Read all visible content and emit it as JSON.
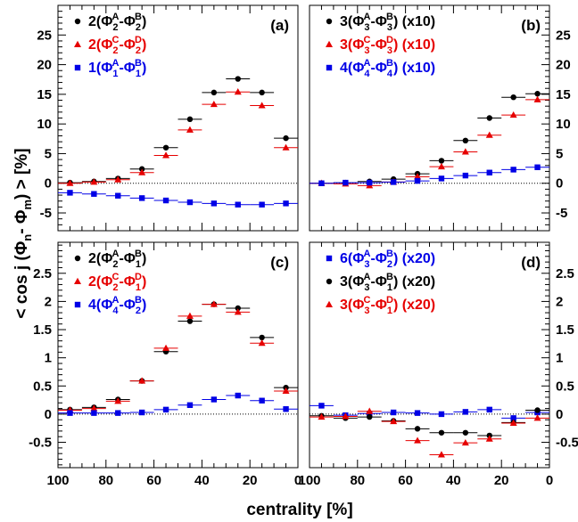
{
  "figure": {
    "xlabel": "centrality [%]",
    "ylabel_parts": [
      "< cos j (Φ",
      "n",
      "- Φ",
      "m",
      ") > [%]"
    ]
  },
  "colors": {
    "black": "#000000",
    "red": "#e60000",
    "blue": "#0000e6",
    "frame": "#000000",
    "dotted": "#000000"
  },
  "chart_data": [
    {
      "type": "scatter",
      "panel_label": "(a)",
      "xlim": [
        100,
        0
      ],
      "ylim": [
        -8,
        30
      ],
      "x_ticks": [
        100,
        80,
        60,
        40,
        20,
        0
      ],
      "y_ticks": [
        -5,
        0,
        5,
        10,
        15,
        20,
        25
      ],
      "y_axis_side": "left",
      "zero_line": true,
      "legend": "top-left",
      "series": [
        {
          "color": "black",
          "marker": "circle",
          "label": {
            "coef": "2",
            "s1": "2",
            "p1": "A",
            "s2": "2",
            "p2": "B",
            "suffix": ""
          },
          "x": [
            95,
            85,
            75,
            65,
            55,
            45,
            35,
            25,
            15,
            5
          ],
          "y": [
            0.1,
            0.3,
            0.8,
            2.4,
            6.0,
            10.8,
            15.3,
            17.6,
            15.3,
            7.6
          ]
        },
        {
          "color": "red",
          "marker": "triangle",
          "label": {
            "coef": "2",
            "s1": "2",
            "p1": "C",
            "s2": "2",
            "p2": "D",
            "suffix": ""
          },
          "x": [
            95,
            85,
            75,
            65,
            55,
            45,
            35,
            25,
            15,
            5
          ],
          "y": [
            0.0,
            0.2,
            0.6,
            1.8,
            4.7,
            9.0,
            13.3,
            15.4,
            13.1,
            6.0
          ]
        },
        {
          "color": "blue",
          "marker": "square",
          "label": {
            "coef": "1",
            "s1": "1",
            "p1": "A",
            "s2": "1",
            "p2": "B",
            "suffix": ""
          },
          "x": [
            95,
            85,
            75,
            65,
            55,
            45,
            35,
            25,
            15,
            5
          ],
          "y": [
            -1.6,
            -1.8,
            -2.1,
            -2.5,
            -2.9,
            -3.2,
            -3.4,
            -3.6,
            -3.6,
            -3.4
          ]
        }
      ]
    },
    {
      "type": "scatter",
      "panel_label": "(b)",
      "xlim": [
        100,
        0
      ],
      "ylim": [
        -8,
        30
      ],
      "x_ticks": [
        100,
        80,
        60,
        40,
        20,
        0
      ],
      "y_ticks": [
        -5,
        0,
        5,
        10,
        15,
        20,
        25
      ],
      "y_axis_side": "right",
      "zero_line": true,
      "legend": "top-left",
      "series": [
        {
          "color": "black",
          "marker": "circle",
          "label": {
            "coef": "3",
            "s1": "3",
            "p1": "A",
            "s2": "3",
            "p2": "B",
            "suffix": " (x10)"
          },
          "x": [
            95,
            85,
            75,
            65,
            55,
            45,
            35,
            25,
            15,
            5
          ],
          "y": [
            0.0,
            0.1,
            0.3,
            0.7,
            1.6,
            3.8,
            7.2,
            11.0,
            14.5,
            15.1
          ]
        },
        {
          "color": "red",
          "marker": "triangle",
          "label": {
            "coef": "3",
            "s1": "3",
            "p1": "C",
            "s2": "3",
            "p2": "D",
            "suffix": " (x10)"
          },
          "x": [
            95,
            85,
            75,
            65,
            55,
            45,
            35,
            25,
            15,
            5
          ],
          "y": [
            0.0,
            -0.1,
            -0.4,
            0.2,
            1.1,
            2.8,
            5.3,
            8.1,
            11.5,
            14.1
          ]
        },
        {
          "color": "blue",
          "marker": "square",
          "label": {
            "coef": "4",
            "s1": "4",
            "p1": "A",
            "s2": "4",
            "p2": "B",
            "suffix": " (x10)"
          },
          "x": [
            95,
            85,
            75,
            65,
            55,
            45,
            35,
            25,
            15,
            5
          ],
          "y": [
            0.0,
            0.1,
            0.1,
            0.2,
            0.4,
            0.8,
            1.3,
            1.8,
            2.3,
            2.7
          ]
        }
      ]
    },
    {
      "type": "scatter",
      "panel_label": "(c)",
      "xlim": [
        100,
        0
      ],
      "ylim": [
        -0.95,
        3.05
      ],
      "x_ticks": [
        100,
        80,
        60,
        40,
        20,
        0
      ],
      "x_tick_labels": [
        "100",
        "80",
        "60",
        "40",
        "20",
        "0"
      ],
      "y_ticks": [
        -0.5,
        0,
        0.5,
        1,
        1.5,
        2,
        2.5
      ],
      "y_tick_labels": [
        "-0.5",
        "0",
        "0.5",
        "1",
        "1.5",
        "2",
        "2.5"
      ],
      "y_axis_side": "left",
      "zero_line": true,
      "legend": "top-left",
      "series": [
        {
          "color": "black",
          "marker": "circle",
          "label": {
            "coef": "2",
            "s1": "2",
            "p1": "A",
            "s2": "1",
            "p2": "B",
            "suffix": ""
          },
          "x": [
            95,
            85,
            75,
            65,
            55,
            45,
            35,
            25,
            15,
            5
          ],
          "y": [
            0.08,
            0.12,
            0.26,
            0.59,
            1.11,
            1.65,
            1.95,
            1.88,
            1.36,
            0.47
          ]
        },
        {
          "color": "red",
          "marker": "triangle",
          "label": {
            "coef": "2",
            "s1": "2",
            "p1": "C",
            "s2": "1",
            "p2": "D",
            "suffix": ""
          },
          "x": [
            95,
            85,
            75,
            65,
            55,
            45,
            35,
            25,
            15,
            5
          ],
          "y": [
            0.07,
            0.1,
            0.23,
            0.59,
            1.17,
            1.74,
            1.95,
            1.81,
            1.26,
            0.41
          ]
        },
        {
          "color": "blue",
          "marker": "square",
          "label": {
            "coef": "4",
            "s1": "4",
            "p1": "A",
            "s2": "2",
            "p2": "B",
            "suffix": ""
          },
          "x": [
            95,
            85,
            75,
            65,
            55,
            45,
            35,
            25,
            15,
            5
          ],
          "y": [
            0.02,
            0.02,
            0.02,
            0.03,
            0.08,
            0.16,
            0.26,
            0.33,
            0.24,
            0.09
          ]
        }
      ]
    },
    {
      "type": "scatter",
      "panel_label": "(d)",
      "xlim": [
        100,
        0
      ],
      "ylim": [
        -0.95,
        3.05
      ],
      "x_ticks": [
        100,
        80,
        60,
        40,
        20,
        0
      ],
      "x_tick_labels": [
        "100",
        "80",
        "60",
        "40",
        "20",
        "0"
      ],
      "y_ticks": [
        -0.5,
        0,
        0.5,
        1,
        1.5,
        2,
        2.5
      ],
      "y_tick_labels": [
        "-0.5",
        "0",
        "0.5",
        "1",
        "1.5",
        "2",
        "2.5"
      ],
      "y_axis_side": "right",
      "zero_line": true,
      "legend": "top-left",
      "series": [
        {
          "color": "blue",
          "marker": "square",
          "label": {
            "coef": "6",
            "s1": "3",
            "p1": "A",
            "s2": "2",
            "p2": "B",
            "suffix": " (x20)"
          },
          "x": [
            95,
            85,
            75,
            65,
            55,
            45,
            35,
            25,
            15,
            5
          ],
          "y": [
            0.15,
            -0.02,
            0.01,
            0.03,
            0.02,
            0.0,
            0.04,
            0.08,
            -0.07,
            0.03
          ]
        },
        {
          "color": "black",
          "marker": "circle",
          "label": {
            "coef": "3",
            "s1": "3",
            "p1": "A",
            "s2": "1",
            "p2": "B",
            "suffix": " (x20)"
          },
          "x": [
            95,
            85,
            75,
            65,
            55,
            45,
            35,
            25,
            15,
            5
          ],
          "y": [
            -0.03,
            -0.07,
            -0.05,
            -0.12,
            -0.26,
            -0.33,
            -0.33,
            -0.38,
            -0.15,
            0.07
          ]
        },
        {
          "color": "red",
          "marker": "triangle",
          "label": {
            "coef": "3",
            "s1": "3",
            "p1": "C",
            "s2": "1",
            "p2": "D",
            "suffix": " (x20)"
          },
          "x": [
            95,
            85,
            75,
            65,
            55,
            45,
            35,
            25,
            15,
            5
          ],
          "y": [
            -0.05,
            -0.04,
            0.05,
            -0.13,
            -0.47,
            -0.72,
            -0.51,
            -0.44,
            -0.16,
            -0.07
          ]
        }
      ]
    }
  ]
}
